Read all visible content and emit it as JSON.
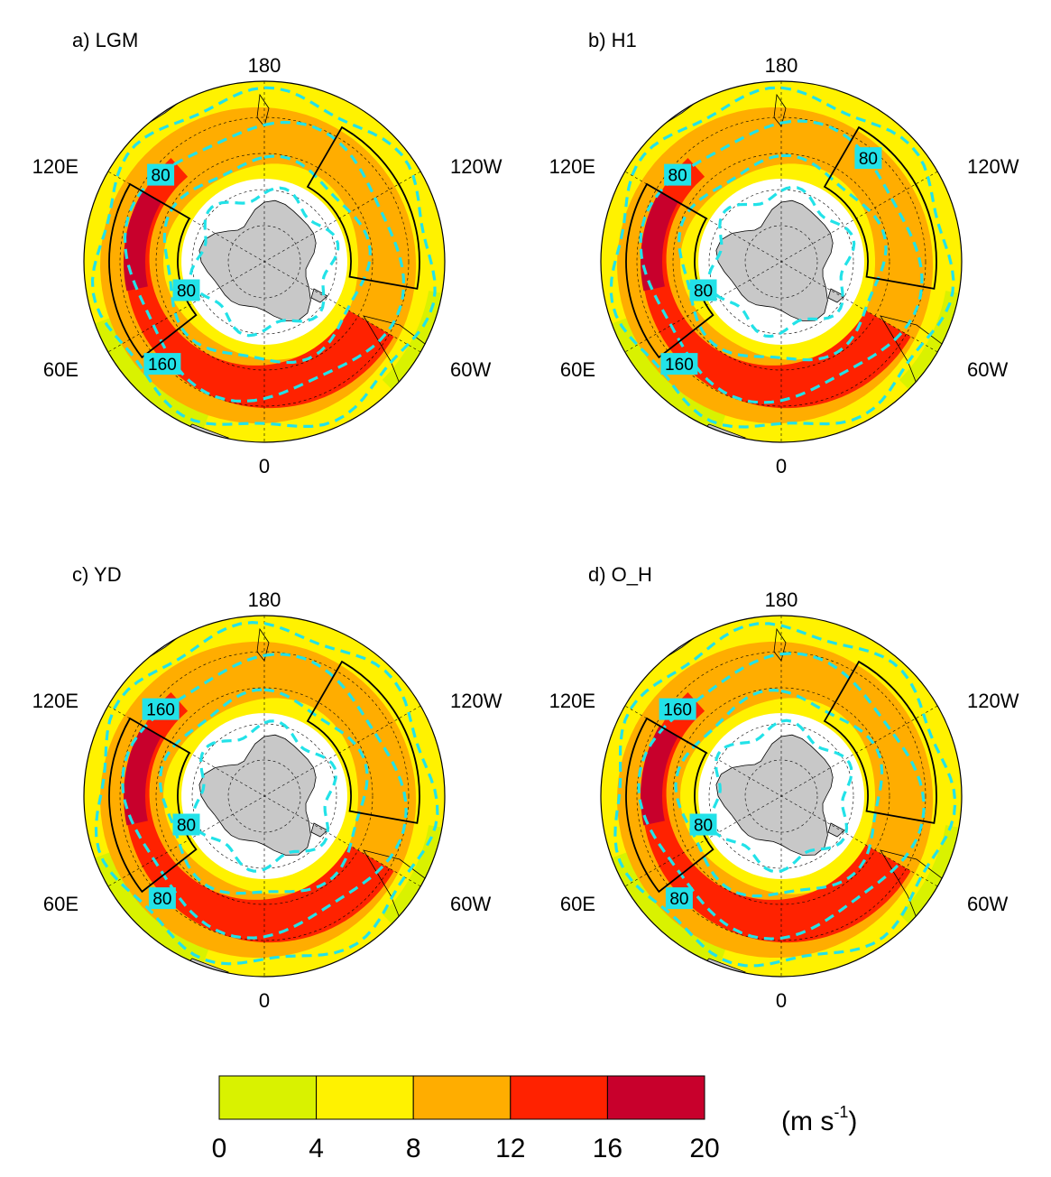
{
  "figure": {
    "panels": [
      {
        "id": "a",
        "label": "a) LGM",
        "lon_labels": {
          "top": "180",
          "upper_left": "120E",
          "upper_right": "120W",
          "lower_left": "60E",
          "lower_right": "60W",
          "bottom": "0"
        },
        "contour_labels": [
          "80",
          "80",
          "160"
        ],
        "jet_strength": "strong",
        "dark_core": true
      },
      {
        "id": "b",
        "label": "b) H1",
        "lon_labels": {
          "top": "180",
          "upper_left": "120E",
          "upper_right": "120W",
          "lower_left": "60E",
          "lower_right": "60W",
          "bottom": "0"
        },
        "contour_labels": [
          "80",
          "80",
          "160",
          "80"
        ],
        "jet_strength": "strong",
        "dark_core": true
      },
      {
        "id": "c",
        "label": "c) YD",
        "lon_labels": {
          "top": "180",
          "upper_left": "120E",
          "upper_right": "120W",
          "lower_left": "60E",
          "lower_right": "60W",
          "bottom": "0"
        },
        "contour_labels": [
          "160",
          "80",
          "80"
        ],
        "jet_strength": "strong",
        "dark_core": true
      },
      {
        "id": "d",
        "label": "d) O_H",
        "lon_labels": {
          "top": "180",
          "upper_left": "120E",
          "upper_right": "120W",
          "lower_left": "60E",
          "lower_right": "60W",
          "bottom": "0"
        },
        "contour_labels": [
          "160",
          "80",
          "80"
        ],
        "jet_strength": "strong",
        "dark_core": true
      }
    ],
    "colorbar": {
      "ticks": [
        "0",
        "4",
        "8",
        "12",
        "16",
        "20"
      ],
      "bins": [
        {
          "from": 0,
          "to": 4,
          "color": "#d9f200"
        },
        {
          "from": 4,
          "to": 8,
          "color": "#fff200"
        },
        {
          "from": 8,
          "to": 12,
          "color": "#ffad00"
        },
        {
          "from": 12,
          "to": 16,
          "color": "#ff2200"
        },
        {
          "from": 16,
          "to": 20,
          "color": "#c8002c"
        }
      ],
      "units_main": "(m s",
      "units_sup": "-1",
      "units_close": ")"
    },
    "colors": {
      "contour": "#22e2e8",
      "land": "#c8c8c8",
      "box": "#000000",
      "grid": "#000000"
    }
  }
}
